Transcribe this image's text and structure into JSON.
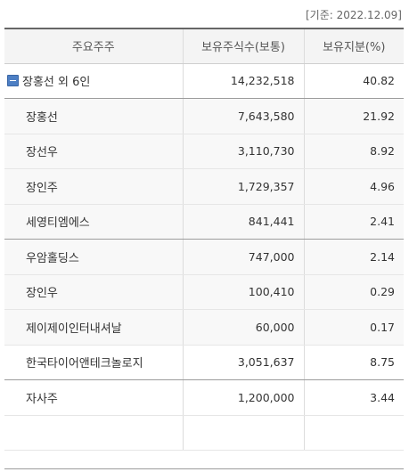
{
  "base_date": "[기준: 2022.12.09]",
  "headers": [
    "주요주주",
    "보유주식수(보통)",
    "보유지분(%)"
  ],
  "group": {
    "name": "장홍선 외 6인",
    "shares": "14,232,518",
    "pct": "40.82",
    "expanded": true
  },
  "members": [
    {
      "name": "장홍선",
      "shares": "7,643,580",
      "pct": "21.92"
    },
    {
      "name": "장선우",
      "shares": "3,110,730",
      "pct": "8.92"
    },
    {
      "name": "장인주",
      "shares": "1,729,357",
      "pct": "4.96"
    },
    {
      "name": "세영티엠에스",
      "shares": "841,441",
      "pct": "2.41"
    },
    {
      "name": "우암홀딩스",
      "shares": "747,000",
      "pct": "2.14"
    },
    {
      "name": "장인우",
      "shares": "100,410",
      "pct": "0.29"
    },
    {
      "name": "제이제이인터내셔날",
      "shares": "60,000",
      "pct": "0.17"
    }
  ],
  "others": [
    {
      "name": "한국타이어앤테크놀로지",
      "shares": "3,051,637",
      "pct": "8.75"
    },
    {
      "name": "자사주",
      "shares": "1,200,000",
      "pct": "3.44"
    },
    {
      "name": "",
      "shares": "",
      "pct": ""
    }
  ]
}
